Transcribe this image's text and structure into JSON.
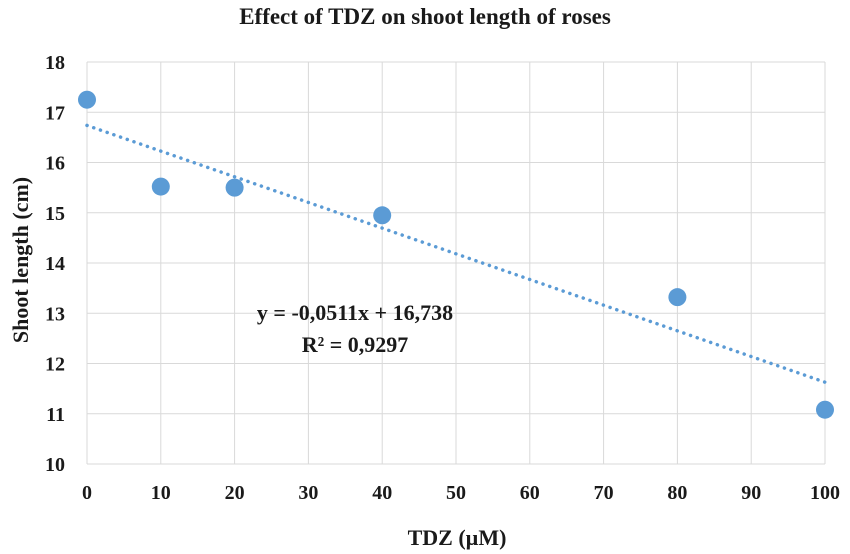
{
  "chart_data": {
    "type": "scatter",
    "title": "Effect of TDZ on shoot length of roses",
    "xlabel": "TDZ  (µM)",
    "ylabel": "Shoot length (cm)",
    "xlim": [
      0,
      100
    ],
    "ylim": [
      10,
      18
    ],
    "x_ticks": [
      "0",
      "10",
      "20",
      "30",
      "40",
      "50",
      "60",
      "70",
      "80",
      "90",
      "100"
    ],
    "y_ticks": [
      "10",
      "11",
      "12",
      "13",
      "14",
      "15",
      "16",
      "17",
      "18"
    ],
    "grid": true,
    "series": [
      {
        "points": [
          {
            "x": 0,
            "y": 17.25
          },
          {
            "x": 10,
            "y": 15.52
          },
          {
            "x": 20,
            "y": 15.5
          },
          {
            "x": 40,
            "y": 14.95
          },
          {
            "x": 80,
            "y": 13.32
          },
          {
            "x": 100,
            "y": 11.08
          }
        ],
        "color": "#5b9bd5"
      }
    ],
    "trendline": {
      "type": "linear",
      "slope": -0.0511,
      "intercept": 16.738,
      "style": "dotted",
      "color": "#5b9bd5"
    },
    "annotations": {
      "equation": "y = -0,0511x + 16,738",
      "r_squared": "R² = 0,9297"
    }
  }
}
